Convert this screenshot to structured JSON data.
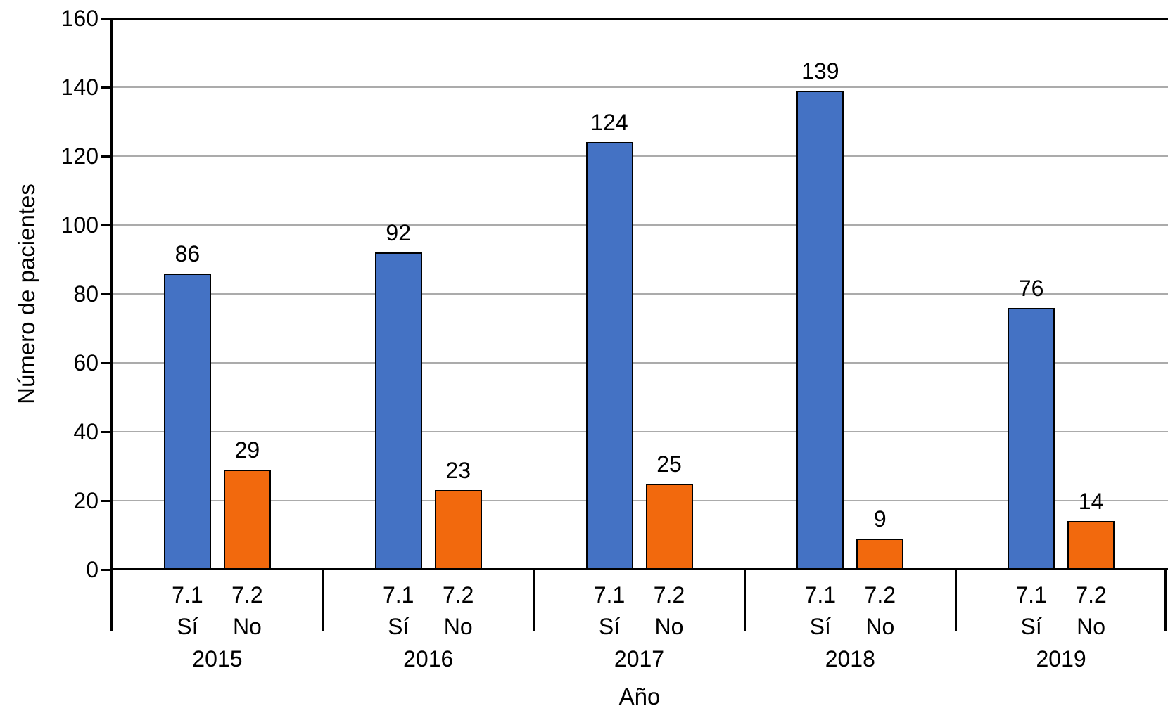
{
  "chart_data": {
    "type": "bar",
    "title": "",
    "xlabel": "Año",
    "ylabel": "Número de pacientes",
    "ylim": [
      0,
      160
    ],
    "yticks": [
      0,
      20,
      40,
      60,
      80,
      100,
      120,
      140,
      160
    ],
    "grid": true,
    "legend_position": "none",
    "categories": [
      "2015",
      "2016",
      "2017",
      "2018",
      "2019"
    ],
    "sub_categories": [
      {
        "code": "7.1",
        "answer": "Sí"
      },
      {
        "code": "7.2",
        "answer": "No"
      }
    ],
    "series": [
      {
        "name": "7.1 Sí",
        "color": "#4472C4",
        "values": [
          86,
          92,
          124,
          139,
          76
        ]
      },
      {
        "name": "7.2 No",
        "color": "#F2690D",
        "values": [
          29,
          23,
          25,
          9,
          14
        ]
      }
    ],
    "colors": {
      "background": "#FFFFFF",
      "axis": "#000000",
      "gridline": "#ABABAB",
      "text": "#000000",
      "bar_outline": "#000000"
    }
  }
}
